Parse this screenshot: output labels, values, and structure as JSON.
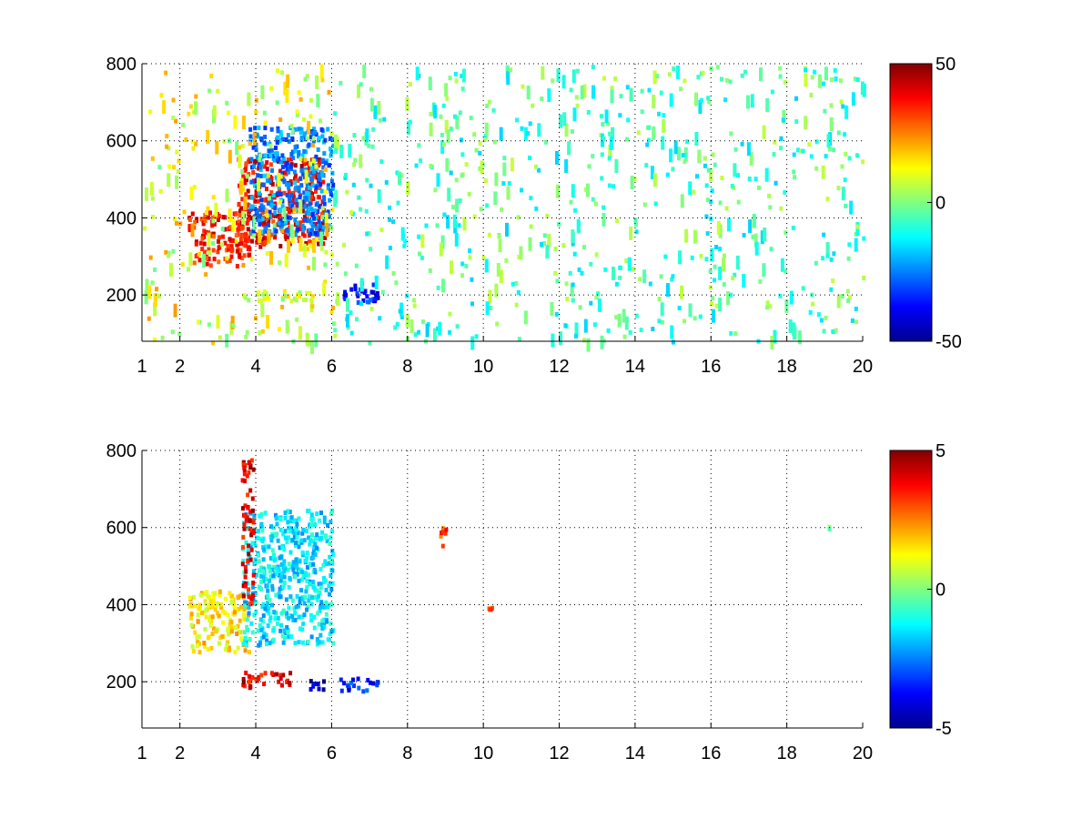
{
  "chart_data": [
    {
      "type": "heatmap",
      "title": "",
      "xlabel": "",
      "ylabel": "",
      "xlim": [
        1,
        20
      ],
      "ylim": [
        80,
        800
      ],
      "x_ticks": [
        1,
        2,
        4,
        6,
        8,
        10,
        12,
        14,
        16,
        18,
        20
      ],
      "x_tick_labels": [
        "1",
        "2",
        "4",
        "6",
        "8",
        "10",
        "12",
        "14",
        "16",
        "18",
        "20"
      ],
      "y_ticks": [
        200,
        400,
        600,
        800
      ],
      "y_tick_labels": [
        "200",
        "400",
        "600",
        "800"
      ],
      "grid": true,
      "colormap": "jet",
      "clim": [
        -50,
        50
      ],
      "colorbar_ticks": [
        50,
        0,
        -50
      ],
      "colorbar_tick_labels": [
        "50",
        "0",
        "-50"
      ],
      "features": [
        {
          "x_range": [
            2.2,
            3.8
          ],
          "y_range": [
            280,
            420
          ],
          "value": 35
        },
        {
          "x_range": [
            3.5,
            5.8
          ],
          "y_range": [
            330,
            560
          ],
          "value": 38
        },
        {
          "x_range": [
            3.8,
            6.0
          ],
          "y_range": [
            360,
            640
          ],
          "value": -25
        },
        {
          "x_range": [
            3.5,
            5.5
          ],
          "y_range": [
            190,
            215
          ],
          "value": 8
        },
        {
          "x_range": [
            6.2,
            7.2
          ],
          "y_range": [
            185,
            240
          ],
          "value": -35
        },
        {
          "x_range": [
            1.0,
            6.0
          ],
          "y_range": [
            80,
            800
          ],
          "value": 10
        },
        {
          "x_range": [
            6.0,
            20.0
          ],
          "y_range": [
            80,
            800
          ],
          "value": -5
        }
      ]
    },
    {
      "type": "heatmap",
      "title": "",
      "xlabel": "",
      "ylabel": "",
      "xlim": [
        1,
        20
      ],
      "ylim": [
        80,
        800
      ],
      "x_ticks": [
        1,
        2,
        4,
        6,
        8,
        10,
        12,
        14,
        16,
        18,
        20
      ],
      "x_tick_labels": [
        "1",
        "2",
        "4",
        "6",
        "8",
        "10",
        "12",
        "14",
        "16",
        "18",
        "20"
      ],
      "y_ticks": [
        200,
        400,
        600,
        800
      ],
      "y_tick_labels": [
        "200",
        "400",
        "600",
        "800"
      ],
      "grid": true,
      "colormap": "jet",
      "clim": [
        -5,
        5
      ],
      "colorbar_ticks": [
        5,
        0,
        -5
      ],
      "colorbar_tick_labels": [
        "5",
        "0",
        "-5"
      ],
      "features": [
        {
          "x_range": [
            2.2,
            3.8
          ],
          "y_range": [
            280,
            440
          ],
          "value": 1.5
        },
        {
          "x_range": [
            3.6,
            6.0
          ],
          "y_range": [
            300,
            650
          ],
          "value": -1.5
        },
        {
          "x_range": [
            3.6,
            3.9
          ],
          "y_range": [
            400,
            780
          ],
          "value": 4
        },
        {
          "x_range": [
            3.6,
            5.0
          ],
          "y_range": [
            190,
            230
          ],
          "value": 4
        },
        {
          "x_range": [
            5.2,
            5.8
          ],
          "y_range": [
            185,
            210
          ],
          "value": -4.5
        },
        {
          "x_range": [
            6.2,
            7.2
          ],
          "y_range": [
            180,
            215
          ],
          "value": -3.5
        },
        {
          "x_range": [
            8.8,
            9.0
          ],
          "y_range": [
            550,
            610
          ],
          "value": 3
        },
        {
          "x_range": [
            10.0,
            10.2
          ],
          "y_range": [
            370,
            400
          ],
          "value": 3
        },
        {
          "x_range": [
            18.9,
            19.1
          ],
          "y_range": [
            600,
            615
          ],
          "value": 0
        }
      ]
    }
  ]
}
